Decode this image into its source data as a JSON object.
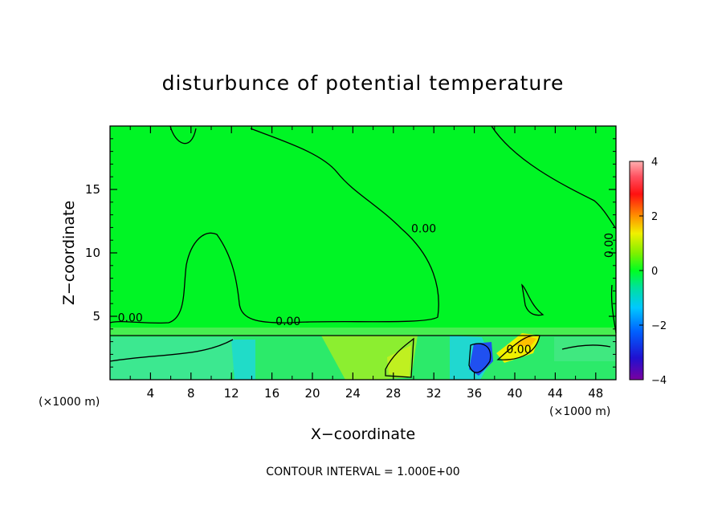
{
  "chart_data": {
    "type": "heatmap",
    "title": "disturbunce of potential temperature",
    "xlabel": "X−coordinate",
    "ylabel": "Z−coordinate",
    "x_unit_left": "(×1000 m)",
    "x_unit_right": "(×1000 m)",
    "xlim": [
      0,
      50
    ],
    "ylim": [
      0,
      20
    ],
    "x_ticks": [
      4,
      8,
      12,
      16,
      20,
      24,
      28,
      32,
      36,
      40,
      44,
      48
    ],
    "x_tick_labels": [
      "4",
      "8",
      "12",
      "16",
      "20",
      "24",
      "28",
      "32",
      "36",
      "40",
      "44",
      "48"
    ],
    "y_ticks": [
      5,
      10,
      15
    ],
    "y_tick_labels": [
      "5",
      "10",
      "15"
    ],
    "colorbar": {
      "range": [
        -4,
        4
      ],
      "ticks": [
        4,
        2,
        0,
        -2,
        -4
      ],
      "tick_labels": [
        "4",
        "2",
        "0",
        "−2",
        "−4"
      ]
    },
    "contour_labels": [
      {
        "text": "0.00",
        "x": 31.0,
        "y": 11.6
      },
      {
        "text": "0.00",
        "x": 2.0,
        "y": 4.6
      },
      {
        "text": "0.00",
        "x": 17.6,
        "y": 4.3
      },
      {
        "text": "0.00",
        "x": 40.4,
        "y": 2.1
      },
      {
        "text": "0.00",
        "x": 49.7,
        "y": 10.6
      }
    ],
    "contour_interval_text": "CONTOUR INTERVAL = 1.000E+00"
  }
}
